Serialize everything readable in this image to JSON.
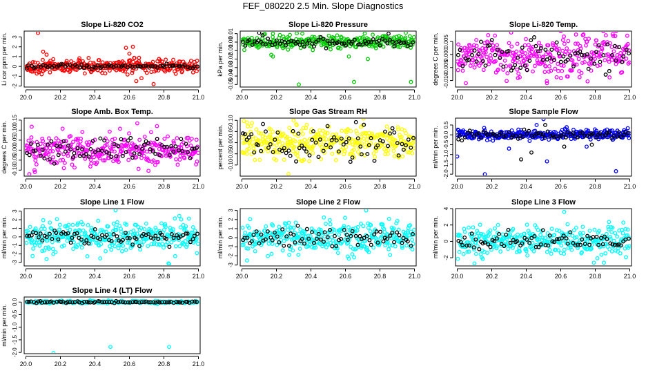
{
  "page": {
    "title": "FEF_080220  2.5 Min. Slope Diagnostics"
  },
  "colors": {
    "red": "#ff0000",
    "green": "#00cc00",
    "magenta": "#ff00ff",
    "yellow": "#ffff00",
    "blue": "#0000ff",
    "cyan": "#00ffff",
    "reference": "#000000"
  },
  "shared_x": {
    "ticks": [
      20.0,
      20.2,
      20.4,
      20.6,
      20.8,
      21.0
    ],
    "tick_labels": [
      "20.0",
      "20.2",
      "20.4",
      "20.6",
      "20.8",
      "21.0"
    ],
    "xlim": [
      19.99,
      21.01
    ]
  },
  "chart_data": [
    {
      "type": "scatter",
      "title": "Slope Li-820 CO2",
      "ylabel": "Li cor ppm per min.",
      "color": "red",
      "ylim": [
        -2.1,
        3.6
      ],
      "yticks": [
        -2,
        -1,
        0,
        1,
        2,
        3
      ],
      "ytick_labels": [
        "-2",
        "-1",
        "0",
        "1",
        "2",
        "3"
      ],
      "series": [
        {
          "name": "all",
          "spread": 0.32,
          "n": 340,
          "outliers": [
            [
              20.07,
              3.4
            ],
            [
              20.1,
              1.5
            ],
            [
              20.12,
              1.2
            ],
            [
              20.58,
              1.9
            ],
            [
              20.6,
              1.3
            ],
            [
              20.62,
              2.0
            ],
            [
              20.64,
              -1.5
            ],
            [
              20.74,
              -1.8
            ],
            [
              20.67,
              -1.2
            ]
          ]
        },
        {
          "name": "reference",
          "spread": 0.12,
          "n": 75,
          "outliers": []
        }
      ]
    },
    {
      "type": "scatter",
      "title": "Slope Li-820 Pressure",
      "ylabel": "kPa per min.",
      "color": "green",
      "ylim": [
        -0.053,
        0.013
      ],
      "yticks": [
        -0.05,
        -0.04,
        -0.03,
        -0.02,
        -0.01,
        0.0,
        0.01
      ],
      "ytick_labels": [
        "-0.05",
        "-0.04",
        "-0.03",
        "-0.02",
        "-0.01",
        "0.00",
        "0.01"
      ],
      "series": [
        {
          "name": "all",
          "spread": 0.0035,
          "n": 300,
          "outliers": [
            [
              20.33,
              -0.05
            ],
            [
              20.65,
              -0.047
            ],
            [
              20.98,
              -0.047
            ],
            [
              20.18,
              -0.017
            ],
            [
              20.17,
              -0.015
            ],
            [
              20.62,
              -0.017
            ],
            [
              20.73,
              -0.02
            ],
            [
              20.18,
              0.01
            ],
            [
              20.35,
              0.01
            ],
            [
              20.95,
              0.011
            ]
          ]
        },
        {
          "name": "reference",
          "spread": 0.0025,
          "n": 75,
          "outliers": [
            [
              20.1,
              0.011
            ],
            [
              20.12,
              0.008
            ],
            [
              20.85,
              0.01
            ]
          ]
        }
      ]
    },
    {
      "type": "scatter",
      "title": "Slope Li-820 Temp.",
      "ylabel": "degrees C per min.",
      "color": "magenta",
      "ylim": [
        -0.0125,
        0.009
      ],
      "yticks": [
        -0.01,
        -0.005,
        0.0,
        0.005
      ],
      "ytick_labels": [
        "-0.010",
        "-0.005",
        "0.000",
        "0.005"
      ],
      "series": [
        {
          "name": "all",
          "spread": 0.004,
          "n": 330,
          "outliers": [
            [
              20.6,
              0.009
            ],
            [
              20.92,
              0.009
            ],
            [
              20.05,
              -0.011
            ],
            [
              20.52,
              -0.011
            ]
          ]
        },
        {
          "name": "reference",
          "spread": 0.0035,
          "n": 75,
          "outliers": []
        }
      ]
    },
    {
      "type": "scatter",
      "title": "Slope Amb. Box Temp.",
      "ylabel": "degrees C per min.",
      "color": "magenta",
      "ylim": [
        -0.13,
        0.16
      ],
      "yticks": [
        -0.1,
        -0.05,
        0.0,
        0.05,
        0.1,
        0.15
      ],
      "ytick_labels": [
        "-0.10",
        "-0.05",
        "0.00",
        "0.05",
        "0.10",
        "0.15"
      ],
      "series": [
        {
          "name": "all",
          "spread": 0.04,
          "n": 330,
          "outliers": [
            [
              20.02,
              -0.12
            ],
            [
              20.76,
              0.12
            ],
            [
              20.05,
              -0.1
            ],
            [
              20.22,
              -0.09
            ]
          ]
        },
        {
          "name": "reference",
          "spread": 0.03,
          "n": 75,
          "outliers": []
        }
      ]
    },
    {
      "type": "scatter",
      "title": "Slope Gas Stream RH",
      "ylabel": "percent per min.",
      "color": "yellow",
      "ylim": [
        -0.15,
        0.11
      ],
      "yticks": [
        -0.1,
        -0.05,
        0.0,
        0.05,
        0.1
      ],
      "ytick_labels": [
        "-0.10",
        "-0.05",
        "0.00",
        "0.05",
        "0.10"
      ],
      "series": [
        {
          "name": "all",
          "spread": 0.035,
          "n": 360,
          "outliers": [
            [
              20.27,
              -0.14
            ],
            [
              20.03,
              0.09
            ],
            [
              20.3,
              0.1
            ]
          ]
        },
        {
          "name": "reference",
          "spread": 0.035,
          "n": 75,
          "outliers": []
        }
      ]
    },
    {
      "type": "scatter",
      "title": "Slope Sample Flow",
      "ylabel": "ml/min per min.",
      "color": "blue",
      "ylim": [
        -2.1,
        0.85
      ],
      "yticks": [
        -2.0,
        -1.5,
        -1.0,
        -0.5,
        0.0,
        0.5
      ],
      "ytick_labels": [
        "-2.0",
        "-1.5",
        "-1.0",
        "-0.5",
        "0.0",
        "0.5"
      ],
      "series": [
        {
          "name": "all",
          "spread": 0.12,
          "n": 330,
          "outliers": [
            [
              20.16,
              -2.0
            ],
            [
              20.52,
              -1.35
            ],
            [
              20.92,
              -1.85
            ],
            [
              20.0,
              -1.1
            ],
            [
              20.5,
              0.8
            ],
            [
              20.46,
              0.5
            ],
            [
              20.75,
              -0.6
            ],
            [
              20.3,
              -0.7
            ]
          ]
        },
        {
          "name": "reference",
          "spread": 0.12,
          "n": 75,
          "outliers": [
            [
              20.37,
              -1.25
            ],
            [
              20.43,
              -0.9
            ],
            [
              20.51,
              0.5
            ],
            [
              20.62,
              -0.6
            ],
            [
              20.78,
              -0.5
            ]
          ]
        }
      ]
    },
    {
      "type": "scatter",
      "title": "Slope Line 1 Flow",
      "ylabel": "ml/min per min.",
      "color": "cyan",
      "ylim": [
        -3.4,
        3.3
      ],
      "yticks": [
        -3,
        -2,
        -1,
        0,
        1,
        2,
        3
      ],
      "ytick_labels": [
        "-3",
        "-2",
        "-1",
        "0",
        "1",
        "2",
        "3"
      ],
      "series": [
        {
          "name": "all",
          "spread": 0.9,
          "n": 340,
          "outliers": [
            [
              20.83,
              -3.2
            ],
            [
              20.52,
              3.1
            ],
            [
              20.12,
              -2.6
            ]
          ]
        },
        {
          "name": "reference",
          "spread": 0.45,
          "n": 75,
          "outliers": []
        }
      ]
    },
    {
      "type": "scatter",
      "title": "Slope Line 2 Flow",
      "ylabel": "ml/min per min.",
      "color": "cyan",
      "ylim": [
        -3.1,
        3.2
      ],
      "yticks": [
        -3,
        -2,
        -1,
        0,
        1,
        2,
        3
      ],
      "ytick_labels": [
        "-3",
        "-2",
        "-1",
        "0",
        "1",
        "2",
        "3"
      ],
      "series": [
        {
          "name": "all",
          "spread": 0.8,
          "n": 340,
          "outliers": [
            [
              20.72,
              3.0
            ],
            [
              20.03,
              -2.5
            ],
            [
              20.62,
              -2.3
            ]
          ]
        },
        {
          "name": "reference",
          "spread": 0.55,
          "n": 75,
          "outliers": []
        }
      ]
    },
    {
      "type": "scatter",
      "title": "Slope Line 3 Flow",
      "ylabel": "ml/min per min.",
      "color": "cyan",
      "ylim": [
        -3.0,
        4.0
      ],
      "yticks": [
        -2,
        0,
        2,
        4
      ],
      "ytick_labels": [
        "-2",
        "0",
        "2",
        "4"
      ],
      "series": [
        {
          "name": "all",
          "spread": 0.85,
          "n": 340,
          "outliers": [
            [
              20.62,
              3.6
            ],
            [
              20.1,
              -2.7
            ],
            [
              20.85,
              -2.6
            ]
          ]
        },
        {
          "name": "reference",
          "spread": 0.6,
          "n": 75,
          "outliers": []
        }
      ]
    },
    {
      "type": "scatter",
      "title": "Slope Line 4 (LT) Flow",
      "ylabel": "ml/min per min.",
      "color": "cyan",
      "ylim": [
        -2.05,
        0.2
      ],
      "yticks": [
        -2.0,
        -1.5,
        -1.0,
        -0.5,
        0.0
      ],
      "ytick_labels": [
        "-2.0",
        "-1.5",
        "-1.0",
        "-0.5",
        "0.0"
      ],
      "series": [
        {
          "name": "all",
          "spread": 0.025,
          "n": 200,
          "outliers": [
            [
              20.16,
              -2.02
            ],
            [
              20.49,
              -1.78
            ],
            [
              20.83,
              -1.78
            ]
          ]
        },
        {
          "name": "reference",
          "spread": 0.02,
          "n": 75,
          "outliers": []
        }
      ]
    }
  ]
}
